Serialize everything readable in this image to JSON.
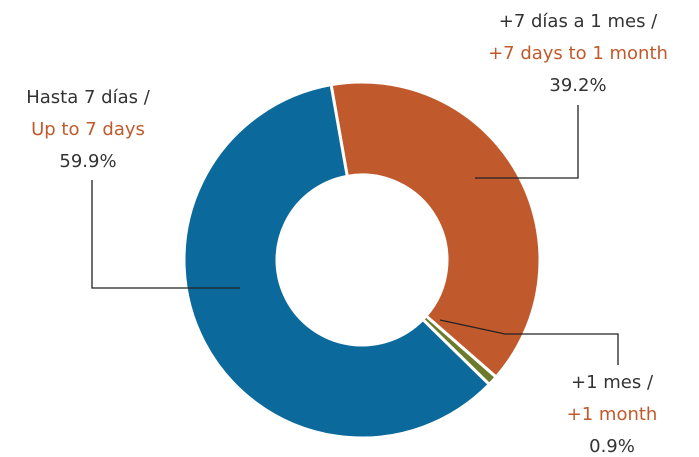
{
  "chart_data": {
    "type": "donut",
    "categories": [
      "Hasta 7 días /",
      "+7 días a 1 mes /",
      "+1 mes /"
    ],
    "categories_en": [
      "Up to 7 days",
      "+7 days to 1 month",
      "+1 month"
    ],
    "values": [
      59.9,
      39.2,
      0.9
    ],
    "value_labels": [
      "59.9%",
      "39.2%",
      "0.9%"
    ],
    "colors": [
      "#0b6a9b",
      "#c05a2c",
      "#6b7b2b"
    ]
  }
}
